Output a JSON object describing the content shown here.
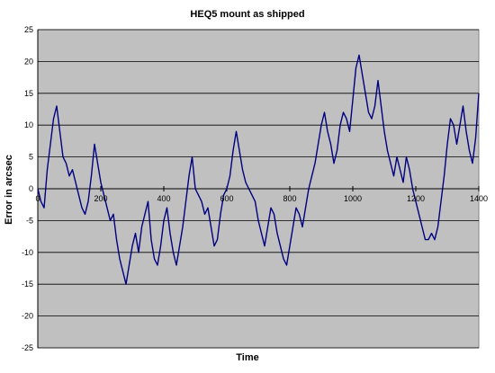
{
  "chart_data": {
    "type": "line",
    "title": "HEQ5 mount as shipped",
    "xlabel": "Time",
    "ylabel": "Error in arcsec",
    "xlim": [
      0,
      1400
    ],
    "ylim": [
      -25,
      25
    ],
    "x_ticks": [
      0,
      200,
      400,
      600,
      800,
      1000,
      1200,
      1400
    ],
    "y_ticks": [
      -25,
      -20,
      -15,
      -10,
      -5,
      0,
      5,
      10,
      15,
      20,
      25
    ],
    "x_tick_labels": [
      "0",
      "200",
      "400",
      "600",
      "800",
      "1000",
      "1200",
      "1400"
    ],
    "y_tick_labels": [
      "-25",
      "-20",
      "-15",
      "-10",
      "-5",
      "0",
      "5",
      "10",
      "15",
      "20",
      "25"
    ],
    "grid": true,
    "legend": "none",
    "colors": {
      "plot_background": "#c0c0c0",
      "gridline": "#000000",
      "series": "#000080"
    },
    "series": [
      {
        "x": [
          0,
          10,
          20,
          30,
          40,
          50,
          60,
          70,
          80,
          90,
          100,
          110,
          120,
          130,
          140,
          150,
          160,
          170,
          180,
          190,
          200,
          210,
          220,
          230,
          240,
          250,
          260,
          270,
          280,
          290,
          300,
          310,
          320,
          330,
          340,
          350,
          360,
          370,
          380,
          390,
          400,
          410,
          420,
          430,
          440,
          450,
          460,
          470,
          480,
          490,
          500,
          510,
          520,
          530,
          540,
          550,
          560,
          570,
          580,
          590,
          600,
          610,
          620,
          630,
          640,
          650,
          660,
          670,
          680,
          690,
          700,
          710,
          720,
          730,
          740,
          750,
          760,
          770,
          780,
          790,
          800,
          810,
          820,
          830,
          840,
          850,
          860,
          870,
          880,
          890,
          900,
          910,
          920,
          930,
          940,
          950,
          960,
          970,
          980,
          990,
          1000,
          1010,
          1020,
          1030,
          1040,
          1050,
          1060,
          1070,
          1080,
          1090,
          1100,
          1110,
          1120,
          1130,
          1140,
          1150,
          1160,
          1170,
          1180,
          1190,
          1200,
          1210,
          1220,
          1230,
          1240,
          1250,
          1260,
          1270,
          1280,
          1290,
          1300,
          1310,
          1320,
          1330,
          1340,
          1350,
          1360,
          1370,
          1380,
          1390,
          1400
        ],
        "y": [
          0,
          -2,
          -3,
          3,
          7,
          11,
          13,
          9,
          5,
          4,
          2,
          3,
          1,
          -1,
          -3,
          -4,
          -2,
          2,
          7,
          4,
          1,
          -1,
          -3,
          -5,
          -4,
          -8,
          -11,
          -13,
          -15,
          -12,
          -9,
          -7,
          -10,
          -6,
          -4,
          -2,
          -8,
          -11,
          -12,
          -9,
          -5,
          -3,
          -7,
          -10,
          -12,
          -9,
          -6,
          -2,
          2,
          5,
          0,
          -1,
          -2,
          -4,
          -3,
          -6,
          -9,
          -8,
          -4,
          -1,
          0,
          2,
          6,
          9,
          6,
          3,
          1,
          0,
          -1,
          -2,
          -5,
          -7,
          -9,
          -6,
          -3,
          -4,
          -7,
          -9,
          -11,
          -12,
          -9,
          -6,
          -3,
          -4,
          -6,
          -3,
          0,
          2,
          4,
          7,
          10,
          12,
          9,
          7,
          4,
          6,
          10,
          12,
          11,
          9,
          14,
          19,
          21,
          18,
          15,
          12,
          11,
          13,
          17,
          13,
          9,
          6,
          4,
          2,
          5,
          3,
          1,
          5,
          3,
          0,
          -2,
          -4,
          -6,
          -8,
          -8,
          -7,
          -8,
          -6,
          -2,
          2,
          7,
          11,
          10,
          7,
          10,
          13,
          9,
          6,
          4,
          8,
          15
        ]
      }
    ]
  }
}
